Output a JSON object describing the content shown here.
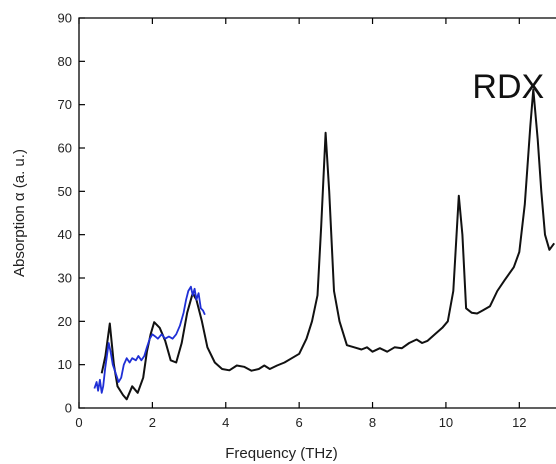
{
  "chart_data": {
    "type": "line",
    "title": "",
    "xlabel": "Frequency (THz)",
    "ylabel": "Absorption α (a. u.)",
    "xlim": [
      0,
      13
    ],
    "ylim": [
      0,
      90
    ],
    "xticks": [
      0,
      2,
      4,
      6,
      8,
      10,
      12
    ],
    "yticks": [
      0,
      10,
      20,
      30,
      40,
      50,
      60,
      70,
      80,
      90
    ],
    "grid": false,
    "annotation": "RDX",
    "series": [
      {
        "color": "#111111",
        "points": [
          [
            0.62,
            8
          ],
          [
            0.72,
            12
          ],
          [
            0.84,
            19.5
          ],
          [
            0.95,
            10
          ],
          [
            1.05,
            5
          ],
          [
            1.2,
            3
          ],
          [
            1.3,
            2
          ],
          [
            1.45,
            5
          ],
          [
            1.6,
            3.5
          ],
          [
            1.75,
            7
          ],
          [
            1.85,
            13
          ],
          [
            1.95,
            17
          ],
          [
            2.05,
            19.8
          ],
          [
            2.2,
            18.5
          ],
          [
            2.35,
            15.5
          ],
          [
            2.5,
            11
          ],
          [
            2.65,
            10.5
          ],
          [
            2.8,
            15
          ],
          [
            2.95,
            22
          ],
          [
            3.1,
            26.5
          ],
          [
            3.2,
            25
          ],
          [
            3.35,
            20
          ],
          [
            3.5,
            14
          ],
          [
            3.7,
            10.5
          ],
          [
            3.9,
            9
          ],
          [
            4.1,
            8.7
          ],
          [
            4.3,
            9.8
          ],
          [
            4.5,
            9.5
          ],
          [
            4.7,
            8.6
          ],
          [
            4.9,
            9
          ],
          [
            5.05,
            9.8
          ],
          [
            5.2,
            9
          ],
          [
            5.4,
            9.8
          ],
          [
            5.6,
            10.5
          ],
          [
            5.8,
            11.5
          ],
          [
            6.0,
            12.5
          ],
          [
            6.2,
            16
          ],
          [
            6.35,
            20
          ],
          [
            6.5,
            26
          ],
          [
            6.6,
            42
          ],
          [
            6.72,
            63.5
          ],
          [
            6.82,
            50
          ],
          [
            6.95,
            27
          ],
          [
            7.1,
            20
          ],
          [
            7.3,
            14.5
          ],
          [
            7.5,
            14
          ],
          [
            7.7,
            13.5
          ],
          [
            7.85,
            14
          ],
          [
            8.0,
            13
          ],
          [
            8.2,
            13.8
          ],
          [
            8.4,
            13
          ],
          [
            8.6,
            14
          ],
          [
            8.8,
            13.8
          ],
          [
            9.0,
            15
          ],
          [
            9.2,
            15.8
          ],
          [
            9.35,
            15
          ],
          [
            9.5,
            15.5
          ],
          [
            9.7,
            17
          ],
          [
            9.9,
            18.5
          ],
          [
            10.05,
            20
          ],
          [
            10.2,
            27
          ],
          [
            10.35,
            49
          ],
          [
            10.45,
            40
          ],
          [
            10.55,
            23
          ],
          [
            10.7,
            22
          ],
          [
            10.85,
            21.8
          ],
          [
            11.0,
            22.5
          ],
          [
            11.2,
            23.5
          ],
          [
            11.4,
            27
          ],
          [
            11.6,
            29.5
          ],
          [
            11.85,
            32.5
          ],
          [
            12.0,
            36
          ],
          [
            12.15,
            47
          ],
          [
            12.3,
            65
          ],
          [
            12.38,
            73.5
          ],
          [
            12.5,
            62
          ],
          [
            12.6,
            50
          ],
          [
            12.7,
            40
          ],
          [
            12.82,
            36.5
          ],
          [
            12.95,
            38
          ]
        ]
      },
      {
        "color": "#1f2fd6",
        "points": [
          [
            0.42,
            4.5
          ],
          [
            0.48,
            6
          ],
          [
            0.52,
            4
          ],
          [
            0.57,
            6.5
          ],
          [
            0.62,
            3.5
          ],
          [
            0.66,
            5
          ],
          [
            0.71,
            9
          ],
          [
            0.76,
            12
          ],
          [
            0.81,
            15
          ],
          [
            0.86,
            13
          ],
          [
            0.92,
            10
          ],
          [
            1.0,
            8
          ],
          [
            1.08,
            6
          ],
          [
            1.15,
            7
          ],
          [
            1.22,
            10
          ],
          [
            1.3,
            11.5
          ],
          [
            1.38,
            10.5
          ],
          [
            1.45,
            11.5
          ],
          [
            1.55,
            11
          ],
          [
            1.62,
            12
          ],
          [
            1.7,
            11
          ],
          [
            1.78,
            12
          ],
          [
            1.85,
            14
          ],
          [
            1.93,
            16
          ],
          [
            2.0,
            17
          ],
          [
            2.08,
            16.5
          ],
          [
            2.15,
            16
          ],
          [
            2.25,
            17
          ],
          [
            2.35,
            16
          ],
          [
            2.45,
            16.5
          ],
          [
            2.55,
            16
          ],
          [
            2.65,
            17
          ],
          [
            2.75,
            19
          ],
          [
            2.85,
            22
          ],
          [
            2.92,
            25
          ],
          [
            2.98,
            27
          ],
          [
            3.05,
            28
          ],
          [
            3.1,
            26
          ],
          [
            3.15,
            27.5
          ],
          [
            3.2,
            25
          ],
          [
            3.26,
            26.5
          ],
          [
            3.32,
            23
          ],
          [
            3.38,
            22.5
          ],
          [
            3.43,
            21.5
          ]
        ]
      }
    ]
  }
}
